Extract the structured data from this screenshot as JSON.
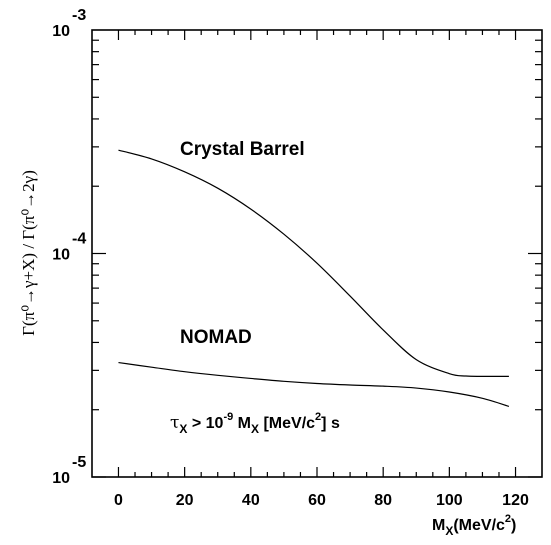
{
  "chart_data": {
    "type": "line",
    "xlabel": "M",
    "xlabel_sub": "X",
    "xlabel_unit": "(MeV/c",
    "xlabel_unit_sup": "2",
    "xlabel_unit_close": ")",
    "ylabel": "Γ(π⁰→γ+X) / Γ(π⁰→2γ)",
    "xlim": [
      -8,
      128
    ],
    "ylim": [
      1e-05,
      0.001
    ],
    "yscale": "log",
    "x_ticks": [
      "0",
      "20",
      "40",
      "60",
      "80",
      "100",
      "120"
    ],
    "y_ticks": [
      {
        "base": "10",
        "exp": "-3"
      },
      {
        "base": "10",
        "exp": "-4"
      },
      {
        "base": "10",
        "exp": "-5"
      }
    ],
    "grid": false,
    "series": [
      {
        "name": "Crystal Barrel",
        "x": [
          0,
          10,
          20,
          30,
          40,
          50,
          60,
          70,
          80,
          90,
          100,
          105,
          110,
          118
        ],
        "values": [
          0.00029,
          0.000265,
          0.000232,
          0.000196,
          0.000158,
          0.000122,
          9.05e-05,
          6.45e-05,
          4.55e-05,
          3.35e-05,
          2.9e-05,
          2.83e-05,
          2.82e-05,
          2.82e-05
        ]
      },
      {
        "name": "NOMAD",
        "x": [
          0,
          10,
          20,
          30,
          40,
          50,
          60,
          70,
          80,
          90,
          100,
          110,
          118
        ],
        "values": [
          3.25e-05,
          3.1e-05,
          2.96e-05,
          2.85e-05,
          2.76e-05,
          2.68e-05,
          2.62e-05,
          2.58e-05,
          2.55e-05,
          2.5e-05,
          2.4e-05,
          2.25e-05,
          2.07e-05
        ]
      }
    ],
    "annotations": {
      "cb_label": "Crystal Barrel",
      "nomad_label": "NOMAD",
      "cond_tau": "τ",
      "cond_tau_sub": "X",
      "cond_gt": " > 10",
      "cond_exp": "-9",
      "cond_m": " M",
      "cond_m_sub": "X",
      "cond_unit": " [MeV/c",
      "cond_unit_sup": "2",
      "cond_unit_close": "]  s"
    }
  }
}
